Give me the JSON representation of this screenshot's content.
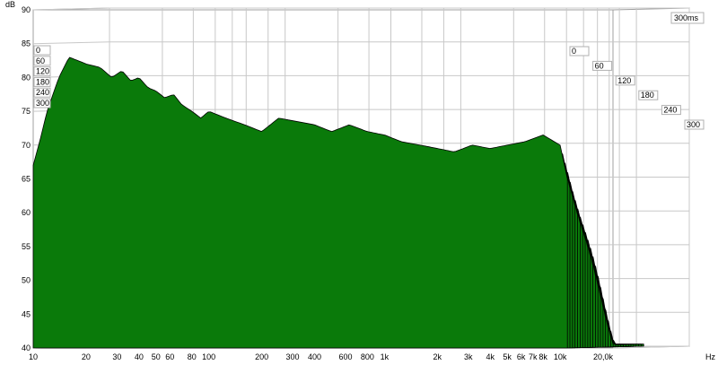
{
  "chart_data": {
    "type": "area",
    "chart_kind": "waterfall",
    "ylabel": "dB",
    "xunit": "Hz",
    "ylim": [
      40,
      90
    ],
    "xlim": [
      10,
      20000
    ],
    "x_scale": "log",
    "grid": true,
    "time_corner_label": "300ms",
    "y_ticks": [
      {
        "value": 40,
        "label": "40"
      },
      {
        "value": 45,
        "label": "45"
      },
      {
        "value": 50,
        "label": "50"
      },
      {
        "value": 55,
        "label": "55"
      },
      {
        "value": 60,
        "label": "60"
      },
      {
        "value": 65,
        "label": "65"
      },
      {
        "value": 70,
        "label": "70"
      },
      {
        "value": 75,
        "label": "75"
      },
      {
        "value": 80,
        "label": "80"
      },
      {
        "value": 85,
        "label": "85"
      },
      {
        "value": 90,
        "label": "90"
      }
    ],
    "x_ticks": [
      {
        "value": 10,
        "label": "10"
      },
      {
        "value": 20,
        "label": "20"
      },
      {
        "value": 30,
        "label": "30"
      },
      {
        "value": 40,
        "label": "40"
      },
      {
        "value": 50,
        "label": "50"
      },
      {
        "value": 60,
        "label": "60"
      },
      {
        "value": 80,
        "label": "80"
      },
      {
        "value": 100,
        "label": "100"
      },
      {
        "value": 200,
        "label": "200"
      },
      {
        "value": 300,
        "label": "300"
      },
      {
        "value": 400,
        "label": "400"
      },
      {
        "value": 600,
        "label": "600"
      },
      {
        "value": 800,
        "label": "800"
      },
      {
        "value": 1000,
        "label": "1k"
      },
      {
        "value": 2000,
        "label": "2k"
      },
      {
        "value": 3000,
        "label": "3k"
      },
      {
        "value": 4000,
        "label": "4k"
      },
      {
        "value": 5000,
        "label": "5k"
      },
      {
        "value": 6000,
        "label": "6k"
      },
      {
        "value": 7000,
        "label": "7k"
      },
      {
        "value": 8000,
        "label": "8k"
      },
      {
        "value": 10000,
        "label": "10k"
      },
      {
        "value": 20000,
        "label": "20,0k"
      }
    ],
    "time_ticks": [
      {
        "value": 0,
        "label": "0"
      },
      {
        "value": 60,
        "label": "60"
      },
      {
        "value": 120,
        "label": "120"
      },
      {
        "value": 180,
        "label": "180"
      },
      {
        "value": 240,
        "label": "240"
      },
      {
        "value": 300,
        "label": "300"
      }
    ],
    "series_times_ms": [
      0,
      10,
      20,
      30,
      40,
      50,
      60,
      70,
      80,
      90,
      100,
      110,
      120,
      130,
      140,
      150,
      160,
      170,
      180,
      190,
      200,
      210,
      220,
      230,
      240,
      250,
      260,
      270,
      280,
      290,
      300
    ],
    "front_slice": {
      "time_ms": 0,
      "freq_hz": [
        10,
        11,
        12,
        14,
        16,
        18,
        20,
        24,
        28,
        32,
        36,
        40,
        45,
        50,
        56,
        63,
        70,
        80,
        90,
        100,
        125,
        160,
        200,
        250,
        315,
        400,
        500,
        630,
        800,
        1000,
        1250,
        1600,
        2000,
        2500,
        3150,
        4000,
        5000,
        6300,
        8000,
        10000,
        11000
      ],
      "db": [
        67,
        71,
        75,
        80,
        83,
        82.5,
        82,
        81.5,
        80,
        81,
        79.5,
        80,
        78.5,
        78,
        77,
        77.5,
        76,
        75,
        74,
        75,
        74,
        73,
        72,
        74,
        73.5,
        73,
        72,
        73,
        72,
        71.5,
        70.5,
        70,
        69.5,
        69,
        70,
        69.5,
        70,
        70.5,
        71.5,
        70,
        65
      ]
    },
    "colors": {
      "surface": "#0a7a0a",
      "slice_line": "#000000",
      "grid": "#c8c8c8",
      "background": "#ffffff"
    }
  }
}
